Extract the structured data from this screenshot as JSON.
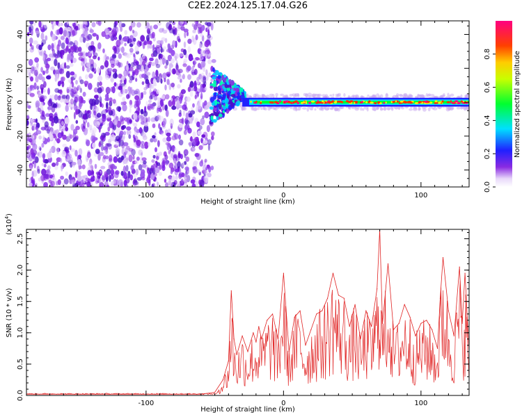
{
  "title": "C2E2.2024.125.17.04.G26",
  "chart_data": [
    {
      "type": "heatmap",
      "xlabel": "Height of straight line (km)",
      "ylabel": "Frequency (Hz)",
      "xlim": [
        -187,
        135
      ],
      "ylim": [
        -50,
        48
      ],
      "xticks": [
        -100,
        0,
        100
      ],
      "yticks": [
        -40,
        -20,
        0,
        20,
        40
      ],
      "colorbar": {
        "label": "Normalized spectral amplitude",
        "range": [
          0.0,
          1.0
        ],
        "ticks": [
          "0.0",
          "0.2",
          "0.4",
          "0.6",
          "0.8"
        ],
        "colormap": [
          "#ffffff",
          "#c8a8f0",
          "#8a2be2",
          "#2020ff",
          "#00e0ff",
          "#00ff00",
          "#ffff00",
          "#ff6000",
          "#ff0080"
        ]
      },
      "description_regions": [
        {
          "x_range": [
            -187,
            -53
          ],
          "freq_range": [
            -50,
            48
          ],
          "amplitude": 0.1
        },
        {
          "x_range": [
            -53,
            -30
          ],
          "freq_range": [
            -10,
            20
          ],
          "amplitude": 0.4
        },
        {
          "x_range": [
            -30,
            135
          ],
          "freq_center": 0,
          "freq_halfwidth": 3,
          "amplitude": 0.8
        }
      ],
      "grid": false
    },
    {
      "type": "line",
      "xlabel": "Height of straight line (km)",
      "ylabel": "SNR (10 * v/v)",
      "y_multiplier": "(x10^4)",
      "xlim": [
        -187,
        135
      ],
      "ylim": [
        0.0,
        2.65
      ],
      "xticks": [
        -100,
        0,
        100
      ],
      "yticks": [
        "0.0",
        "0.5",
        "1.0",
        "1.5",
        "2.0",
        "2.5"
      ],
      "series": [
        {
          "color": "#e02020",
          "x": [
            -187,
            -150,
            -100,
            -60,
            -50,
            -44,
            -40,
            -38,
            -36,
            -34,
            -30,
            -26,
            -22,
            -20,
            -18,
            -16,
            -12,
            -8,
            -4,
            0,
            4,
            8,
            12,
            16,
            20,
            24,
            28,
            32,
            36,
            40,
            44,
            48,
            52,
            56,
            60,
            64,
            68,
            70,
            72,
            76,
            80,
            84,
            88,
            92,
            96,
            100,
            104,
            108,
            112,
            114,
            116,
            120,
            124,
            128,
            130,
            132,
            135
          ],
          "values": [
            0.02,
            0.02,
            0.02,
            0.02,
            0.05,
            0.25,
            0.55,
            1.67,
            0.9,
            0.65,
            0.95,
            0.7,
            1.0,
            0.85,
            1.1,
            0.9,
            1.2,
            1.3,
            0.9,
            1.95,
            0.7,
            1.25,
            1.35,
            0.8,
            1.05,
            1.3,
            1.35,
            1.55,
            1.95,
            1.6,
            1.55,
            1.1,
            1.45,
            0.9,
            1.35,
            1.1,
            1.7,
            2.65,
            1.15,
            2.1,
            1.05,
            1.15,
            1.45,
            1.25,
            0.95,
            1.15,
            1.2,
            1.05,
            0.75,
            1.55,
            2.2,
            1.35,
            0.95,
            2.05,
            1.15,
            1.95,
            0.7
          ]
        }
      ],
      "grid": false
    }
  ]
}
